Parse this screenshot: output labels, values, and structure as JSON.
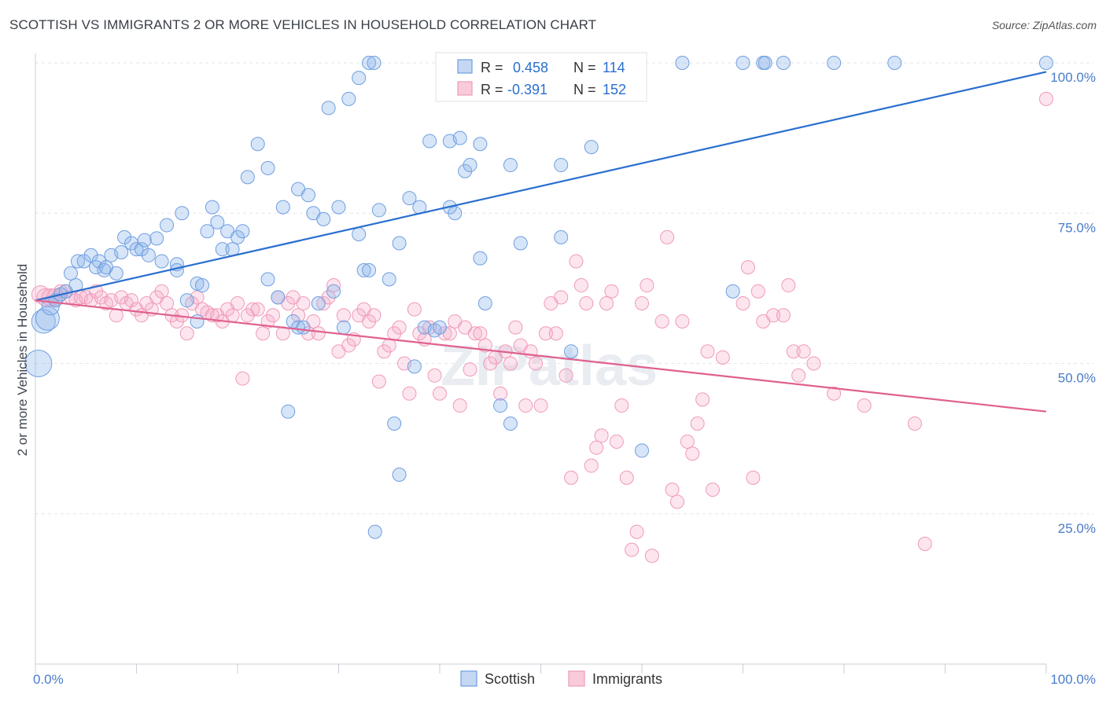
{
  "title": "SCOTTISH VS IMMIGRANTS 2 OR MORE VEHICLES IN HOUSEHOLD CORRELATION CHART",
  "source": "Source: ZipAtlas.com",
  "watermark": "ZIPatlas",
  "colors": {
    "scottish": "#6f9fe0",
    "scottish_line": "#2a6fcf",
    "immigrants": "#f09ab8",
    "immigrants_line": "#e0608e",
    "tick": "#4a7cc9"
  },
  "chart_data": {
    "type": "scatter",
    "ylabel": "2 or more Vehicles in Household",
    "xlim": [
      0,
      100
    ],
    "ylim": [
      0,
      103
    ],
    "x_tick_labels": [
      "0.0%",
      "100.0%"
    ],
    "y_ticks": [
      25,
      50,
      75,
      100
    ],
    "y_tick_labels": [
      "25.0%",
      "50.0%",
      "75.0%",
      "100.0%"
    ],
    "grid": true,
    "legend_stats": [
      {
        "r_label": "R =",
        "r": "0.458",
        "n_label": "N =",
        "n": "114"
      },
      {
        "r_label": "R =",
        "r": "-0.391",
        "n_label": "N =",
        "n": "152"
      }
    ],
    "series": [
      {
        "name": "Scottish",
        "trend": [
          [
            0,
            60.5
          ],
          [
            100,
            98.5
          ]
        ],
        "points": [
          [
            0.3,
            50
          ],
          [
            0.8,
            57
          ],
          [
            1.2,
            57.5
          ],
          [
            1.5,
            59.5
          ],
          [
            2,
            60.5
          ],
          [
            2.5,
            61.5
          ],
          [
            3,
            62
          ],
          [
            3.5,
            65
          ],
          [
            4,
            63
          ],
          [
            4.2,
            67
          ],
          [
            4.8,
            67
          ],
          [
            5.5,
            68
          ],
          [
            6,
            66
          ],
          [
            6.3,
            67
          ],
          [
            6.8,
            65.5
          ],
          [
            7,
            66
          ],
          [
            7.5,
            68
          ],
          [
            8,
            65
          ],
          [
            8.5,
            68.5
          ],
          [
            8.8,
            71
          ],
          [
            9.5,
            70
          ],
          [
            10,
            69
          ],
          [
            10.5,
            69
          ],
          [
            10.8,
            70.5
          ],
          [
            11.2,
            68
          ],
          [
            12,
            70.8
          ],
          [
            12.5,
            67
          ],
          [
            13,
            73
          ],
          [
            14,
            66.5
          ],
          [
            14,
            65.5
          ],
          [
            14.5,
            75
          ],
          [
            15,
            60.5
          ],
          [
            16,
            63.3
          ],
          [
            16,
            57
          ],
          [
            16.5,
            63
          ],
          [
            17,
            72
          ],
          [
            17.5,
            76
          ],
          [
            18,
            73.5
          ],
          [
            18.5,
            69
          ],
          [
            19,
            72
          ],
          [
            19.5,
            69
          ],
          [
            20,
            71
          ],
          [
            20.5,
            72
          ],
          [
            21,
            81
          ],
          [
            22,
            86.5
          ],
          [
            23,
            64
          ],
          [
            23,
            82.5
          ],
          [
            24,
            61
          ],
          [
            24.5,
            76
          ],
          [
            25,
            42
          ],
          [
            25.5,
            57
          ],
          [
            26,
            56
          ],
          [
            26,
            79
          ],
          [
            26.5,
            56
          ],
          [
            27,
            78
          ],
          [
            27.5,
            75
          ],
          [
            28,
            60
          ],
          [
            28.5,
            74
          ],
          [
            29,
            92.5
          ],
          [
            29.5,
            62
          ],
          [
            30,
            76
          ],
          [
            30.5,
            56
          ],
          [
            31,
            94
          ],
          [
            32,
            97.5
          ],
          [
            32,
            71.5
          ],
          [
            32.5,
            65.5
          ],
          [
            33,
            65.5
          ],
          [
            33,
            100
          ],
          [
            33.5,
            100
          ],
          [
            33.6,
            22
          ],
          [
            34,
            75.5
          ],
          [
            35,
            64
          ],
          [
            35.5,
            40
          ],
          [
            36,
            31.5
          ],
          [
            36,
            70
          ],
          [
            37,
            77.5
          ],
          [
            37.5,
            49.5
          ],
          [
            38,
            76
          ],
          [
            38.5,
            56
          ],
          [
            39,
            87
          ],
          [
            39.5,
            55.5
          ],
          [
            40,
            56
          ],
          [
            41,
            87
          ],
          [
            41,
            76
          ],
          [
            41.5,
            75
          ],
          [
            42,
            87.5
          ],
          [
            42.5,
            82
          ],
          [
            43,
            83
          ],
          [
            44,
            86.5
          ],
          [
            44,
            67.5
          ],
          [
            44.5,
            60
          ],
          [
            45,
            100
          ],
          [
            46,
            43
          ],
          [
            47,
            40
          ],
          [
            47,
            83
          ],
          [
            48,
            70
          ],
          [
            49,
            100
          ],
          [
            50,
            100
          ],
          [
            52,
            71
          ],
          [
            52,
            83
          ],
          [
            53,
            52
          ],
          [
            55,
            86
          ],
          [
            58,
            100
          ],
          [
            60,
            35.5
          ],
          [
            64,
            100
          ],
          [
            69,
            62
          ],
          [
            70,
            100
          ],
          [
            72,
            100
          ],
          [
            72.2,
            100
          ],
          [
            74,
            100
          ],
          [
            79,
            100
          ],
          [
            85,
            100
          ],
          [
            100,
            100
          ]
        ]
      },
      {
        "name": "Immigrants",
        "trend": [
          [
            0,
            60.5
          ],
          [
            100,
            42
          ]
        ],
        "points": [
          [
            0.5,
            61.5
          ],
          [
            1,
            61
          ],
          [
            1.5,
            61
          ],
          [
            2,
            61
          ],
          [
            2.5,
            62
          ],
          [
            3,
            62
          ],
          [
            3.5,
            61
          ],
          [
            4,
            60.5
          ],
          [
            4.5,
            61
          ],
          [
            5,
            61
          ],
          [
            5.5,
            60.5
          ],
          [
            6,
            62
          ],
          [
            6.5,
            61
          ],
          [
            7,
            60
          ],
          [
            7.5,
            60.5
          ],
          [
            8,
            58
          ],
          [
            8.5,
            61
          ],
          [
            9,
            60
          ],
          [
            9.5,
            60.5
          ],
          [
            10,
            59
          ],
          [
            10.5,
            58
          ],
          [
            11,
            60
          ],
          [
            11.5,
            59
          ],
          [
            12,
            61
          ],
          [
            12.5,
            62
          ],
          [
            13,
            60
          ],
          [
            13.5,
            58
          ],
          [
            14,
            57
          ],
          [
            14.5,
            58
          ],
          [
            15,
            55
          ],
          [
            15.5,
            60
          ],
          [
            16,
            61
          ],
          [
            16.5,
            59
          ],
          [
            17,
            58.5
          ],
          [
            17.5,
            58
          ],
          [
            18,
            58
          ],
          [
            18.5,
            57
          ],
          [
            19,
            59
          ],
          [
            19.5,
            58
          ],
          [
            20,
            60
          ],
          [
            20.5,
            47.5
          ],
          [
            21,
            58
          ],
          [
            21.5,
            59
          ],
          [
            22,
            59
          ],
          [
            22.5,
            55
          ],
          [
            23,
            57
          ],
          [
            23.5,
            58
          ],
          [
            24,
            61
          ],
          [
            24.5,
            55
          ],
          [
            25,
            60
          ],
          [
            25.5,
            61
          ],
          [
            26,
            58
          ],
          [
            26.5,
            60
          ],
          [
            27,
            55
          ],
          [
            27.5,
            57
          ],
          [
            28,
            55
          ],
          [
            28.5,
            60
          ],
          [
            29,
            61
          ],
          [
            29.5,
            63
          ],
          [
            30,
            52
          ],
          [
            30.5,
            58
          ],
          [
            31,
            53
          ],
          [
            31.5,
            54
          ],
          [
            32,
            58
          ],
          [
            32.5,
            59
          ],
          [
            33,
            57
          ],
          [
            33.5,
            58
          ],
          [
            34,
            47
          ],
          [
            34.5,
            52
          ],
          [
            35,
            53
          ],
          [
            35.5,
            55
          ],
          [
            36,
            56
          ],
          [
            36.5,
            50
          ],
          [
            37,
            45
          ],
          [
            37.5,
            59
          ],
          [
            38,
            55
          ],
          [
            38.5,
            54
          ],
          [
            39,
            56
          ],
          [
            39.5,
            48
          ],
          [
            40,
            45
          ],
          [
            40.5,
            55
          ],
          [
            41,
            55
          ],
          [
            41.5,
            57
          ],
          [
            42,
            43
          ],
          [
            42.5,
            56
          ],
          [
            43,
            49
          ],
          [
            43.5,
            55
          ],
          [
            44,
            55
          ],
          [
            44.5,
            53
          ],
          [
            45,
            50
          ],
          [
            45.5,
            51
          ],
          [
            46,
            45
          ],
          [
            46.5,
            52
          ],
          [
            47,
            50
          ],
          [
            47.5,
            56
          ],
          [
            48,
            53
          ],
          [
            48.5,
            43
          ],
          [
            49,
            52
          ],
          [
            49.5,
            50
          ],
          [
            50,
            43
          ],
          [
            50.5,
            55
          ],
          [
            51,
            60
          ],
          [
            51.5,
            55
          ],
          [
            52,
            61
          ],
          [
            52.5,
            48
          ],
          [
            53,
            31
          ],
          [
            53.5,
            67
          ],
          [
            54,
            63
          ],
          [
            54.5,
            60
          ],
          [
            55,
            33
          ],
          [
            55.5,
            36
          ],
          [
            56,
            38
          ],
          [
            56.5,
            60
          ],
          [
            57,
            62
          ],
          [
            57.5,
            37
          ],
          [
            58,
            43
          ],
          [
            58.5,
            31
          ],
          [
            59,
            19
          ],
          [
            59.5,
            22
          ],
          [
            60,
            60
          ],
          [
            60.5,
            63
          ],
          [
            61,
            18
          ],
          [
            62,
            57
          ],
          [
            62.5,
            71
          ],
          [
            63,
            29
          ],
          [
            63.5,
            27
          ],
          [
            64,
            57
          ],
          [
            64.5,
            37
          ],
          [
            65,
            35
          ],
          [
            65.5,
            40
          ],
          [
            66,
            44
          ],
          [
            66.5,
            52
          ],
          [
            67,
            29
          ],
          [
            68,
            51
          ],
          [
            70,
            60
          ],
          [
            70.5,
            66
          ],
          [
            71,
            31
          ],
          [
            71.5,
            62
          ],
          [
            72,
            57
          ],
          [
            73,
            58
          ],
          [
            74,
            58
          ],
          [
            74.5,
            63
          ],
          [
            75,
            52
          ],
          [
            75.5,
            48
          ],
          [
            76,
            52
          ],
          [
            77,
            50
          ],
          [
            79,
            45
          ],
          [
            82,
            43
          ],
          [
            87,
            40
          ],
          [
            88,
            20
          ],
          [
            100,
            94
          ]
        ]
      }
    ]
  }
}
